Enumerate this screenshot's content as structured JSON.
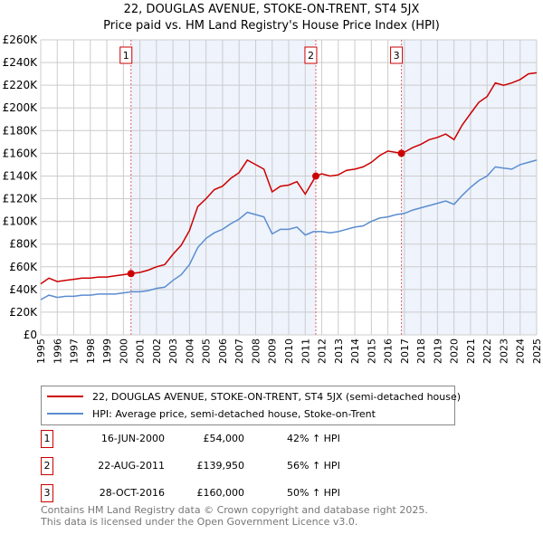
{
  "chart_data": {
    "type": "line",
    "title": "22, DOUGLAS AVENUE, STOKE-ON-TRENT, ST4 5JX",
    "subtitle": "Price paid vs. HM Land Registry's House Price Index (HPI)",
    "xlim": [
      1995,
      2025
    ],
    "ylim": [
      0,
      260000
    ],
    "xticks": [
      "1995",
      "1996",
      "1997",
      "1998",
      "1999",
      "2000",
      "2001",
      "2002",
      "2003",
      "2004",
      "2005",
      "2006",
      "2007",
      "2008",
      "2009",
      "2010",
      "2011",
      "2012",
      "2013",
      "2014",
      "2015",
      "2016",
      "2017",
      "2018",
      "2019",
      "2020",
      "2021",
      "2022",
      "2023",
      "2024",
      "2025"
    ],
    "yticks": [
      "£0",
      "£20K",
      "£40K",
      "£60K",
      "£80K",
      "£100K",
      "£120K",
      "£140K",
      "£160K",
      "£180K",
      "£200K",
      "£220K",
      "£240K",
      "£260K"
    ],
    "grid": true,
    "series": [
      {
        "name": "22, DOUGLAS AVENUE, STOKE-ON-TRENT, ST4 5JX (semi-detached house)",
        "color": "#cc0000",
        "x": [
          1995,
          1995.5,
          1996,
          1996.5,
          1997,
          1997.5,
          1998,
          1998.5,
          1999,
          1999.5,
          2000,
          2000.46,
          2001,
          2001.5,
          2002,
          2002.5,
          2003,
          2003.5,
          2004,
          2004.5,
          2005,
          2005.5,
          2006,
          2006.5,
          2007,
          2007.5,
          2008,
          2008.5,
          2009,
          2009.5,
          2010,
          2010.5,
          2011,
          2011.64,
          2012,
          2012.5,
          2013,
          2013.5,
          2014,
          2014.5,
          2015,
          2015.5,
          2016,
          2016.82,
          2017,
          2017.5,
          2018,
          2018.5,
          2019,
          2019.5,
          2020,
          2020.5,
          2021,
          2021.5,
          2022,
          2022.5,
          2023,
          2023.5,
          2024,
          2024.5,
          2025
        ],
        "y": [
          45000,
          50000,
          47000,
          48000,
          49000,
          50000,
          50000,
          51000,
          51000,
          52000,
          53000,
          54000,
          55000,
          57000,
          60000,
          62000,
          71000,
          79000,
          92000,
          113000,
          120000,
          128000,
          131000,
          138000,
          143000,
          154000,
          150000,
          146000,
          126000,
          131000,
          132000,
          135000,
          124000,
          139950,
          142000,
          140000,
          141000,
          145000,
          146000,
          148000,
          152000,
          158000,
          162000,
          160000,
          161000,
          165000,
          168000,
          172000,
          174000,
          177000,
          172000,
          185000,
          195000,
          205000,
          210000,
          222000,
          220000,
          222000,
          225000,
          230000,
          231000
        ]
      },
      {
        "name": "HPI: Average price, semi-detached house, Stoke-on-Trent",
        "color": "#5b8dd0",
        "x": [
          1995,
          1995.5,
          1996,
          1996.5,
          1997,
          1997.5,
          1998,
          1998.5,
          1999,
          1999.5,
          2000,
          2000.5,
          2001,
          2001.5,
          2002,
          2002.5,
          2003,
          2003.5,
          2004,
          2004.5,
          2005,
          2005.5,
          2006,
          2006.5,
          2007,
          2007.5,
          2008,
          2008.5,
          2009,
          2009.5,
          2010,
          2010.5,
          2011,
          2011.5,
          2012,
          2012.5,
          2013,
          2013.5,
          2014,
          2014.5,
          2015,
          2015.5,
          2016,
          2016.5,
          2017,
          2017.5,
          2018,
          2018.5,
          2019,
          2019.5,
          2020,
          2020.5,
          2021,
          2021.5,
          2022,
          2022.5,
          2023,
          2023.5,
          2024,
          2024.5,
          2025
        ],
        "y": [
          31000,
          35000,
          33000,
          34000,
          34000,
          35000,
          35000,
          36000,
          36000,
          36000,
          37000,
          38000,
          38000,
          39000,
          41000,
          42000,
          48000,
          53000,
          62000,
          77000,
          85000,
          90000,
          93000,
          98000,
          102000,
          108000,
          106000,
          104000,
          89000,
          93000,
          93000,
          95000,
          88000,
          91000,
          91000,
          90000,
          91000,
          93000,
          95000,
          96000,
          100000,
          103000,
          104000,
          106000,
          107000,
          110000,
          112000,
          114000,
          116000,
          118000,
          115000,
          123000,
          130000,
          136000,
          140000,
          148000,
          147000,
          146000,
          150000,
          152000,
          154000
        ]
      }
    ],
    "sales": [
      {
        "label": "1",
        "x": 2000.46,
        "y": 54000,
        "date": "16-JUN-2000",
        "price": "£54,000",
        "hpi": "42% ↑ HPI"
      },
      {
        "label": "2",
        "x": 2011.64,
        "y": 139950,
        "date": "22-AUG-2011",
        "price": "£139,950",
        "hpi": "56% ↑ HPI"
      },
      {
        "label": "3",
        "x": 2016.82,
        "y": 160000,
        "date": "28-OCT-2016",
        "price": "£160,000",
        "hpi": "50% ↑ HPI"
      }
    ],
    "legend_position": "below"
  },
  "footer": {
    "line1": "Contains HM Land Registry data © Crown copyright and database right 2025.",
    "line2": "This data is licensed under the Open Government Licence v3.0."
  }
}
